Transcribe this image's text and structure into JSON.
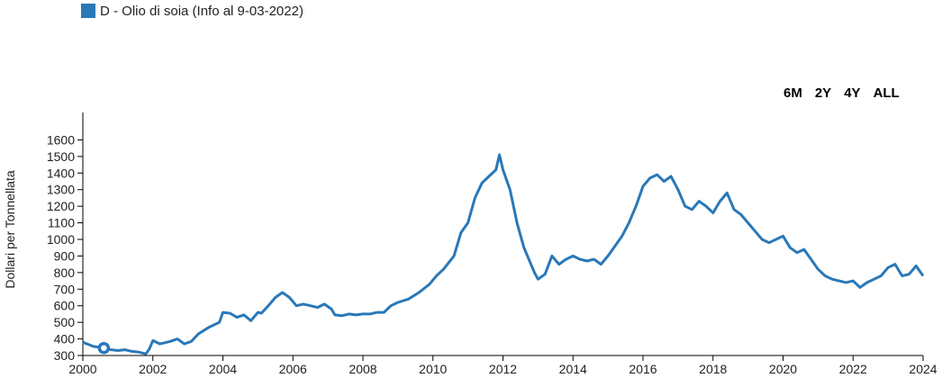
{
  "legend": {
    "label": "D - Olio di soia (Info al 9-03-2022)",
    "color": "#2a78b8"
  },
  "range_buttons": [
    "6M",
    "2Y",
    "4Y",
    "ALL"
  ],
  "chart_data": {
    "type": "line",
    "title": "",
    "xlabel": "",
    "ylabel": "Dollari per Tonnellata",
    "xlim": [
      2000,
      2024
    ],
    "ylim": [
      300,
      1700
    ],
    "x_ticks": [
      "2000",
      "2002",
      "2004",
      "2006",
      "2008",
      "2010",
      "2012",
      "2014",
      "2016",
      "2018",
      "2020",
      "2022",
      "2024"
    ],
    "y_ticks": [
      "300",
      "400",
      "500",
      "600",
      "700",
      "800",
      "900",
      "1000",
      "1100",
      "1200",
      "1300",
      "1400",
      "1500",
      "1600"
    ],
    "grid": false,
    "series": [
      {
        "name": "D - Olio di soia (Info al 9-03-2022)",
        "color": "#2a78b8",
        "points": [
          [
            2000.0,
            380
          ],
          [
            2000.3,
            355
          ],
          [
            2000.6,
            345
          ],
          [
            2000.8,
            335
          ],
          [
            2001.0,
            330
          ],
          [
            2001.2,
            335
          ],
          [
            2001.4,
            325
          ],
          [
            2001.6,
            320
          ],
          [
            2001.8,
            310
          ],
          [
            2001.9,
            340
          ],
          [
            2002.0,
            390
          ],
          [
            2002.2,
            370
          ],
          [
            2002.5,
            385
          ],
          [
            2002.7,
            400
          ],
          [
            2002.9,
            370
          ],
          [
            2003.1,
            385
          ],
          [
            2003.3,
            430
          ],
          [
            2003.6,
            470
          ],
          [
            2003.9,
            500
          ],
          [
            2004.0,
            560
          ],
          [
            2004.2,
            555
          ],
          [
            2004.4,
            530
          ],
          [
            2004.6,
            545
          ],
          [
            2004.8,
            510
          ],
          [
            2005.0,
            560
          ],
          [
            2005.1,
            555
          ],
          [
            2005.3,
            600
          ],
          [
            2005.5,
            650
          ],
          [
            2005.7,
            680
          ],
          [
            2005.9,
            650
          ],
          [
            2006.1,
            600
          ],
          [
            2006.3,
            610
          ],
          [
            2006.5,
            600
          ],
          [
            2006.7,
            590
          ],
          [
            2006.9,
            610
          ],
          [
            2007.1,
            580
          ],
          [
            2007.2,
            545
          ],
          [
            2007.4,
            540
          ],
          [
            2007.6,
            550
          ],
          [
            2007.8,
            545
          ],
          [
            2008.0,
            550
          ],
          [
            2008.2,
            550
          ],
          [
            2008.4,
            560
          ],
          [
            2008.6,
            560
          ],
          [
            2008.8,
            600
          ],
          [
            2009.0,
            620
          ],
          [
            2009.3,
            640
          ],
          [
            2009.6,
            680
          ],
          [
            2009.9,
            730
          ],
          [
            2010.1,
            780
          ],
          [
            2010.3,
            820
          ],
          [
            2010.6,
            900
          ],
          [
            2010.8,
            1040
          ],
          [
            2011.0,
            1100
          ],
          [
            2011.2,
            1250
          ],
          [
            2011.4,
            1340
          ],
          [
            2011.6,
            1380
          ],
          [
            2011.8,
            1420
          ],
          [
            2011.9,
            1510
          ],
          [
            2012.0,
            1420
          ],
          [
            2012.2,
            1300
          ],
          [
            2012.4,
            1100
          ],
          [
            2012.6,
            950
          ],
          [
            2012.9,
            800
          ],
          [
            2013.0,
            760
          ],
          [
            2013.2,
            790
          ],
          [
            2013.4,
            900
          ],
          [
            2013.6,
            850
          ],
          [
            2013.8,
            880
          ],
          [
            2014.0,
            900
          ],
          [
            2014.2,
            880
          ],
          [
            2014.4,
            870
          ],
          [
            2014.6,
            880
          ],
          [
            2014.8,
            850
          ],
          [
            2015.0,
            900
          ],
          [
            2015.2,
            960
          ],
          [
            2015.4,
            1020
          ],
          [
            2015.6,
            1100
          ],
          [
            2015.8,
            1200
          ],
          [
            2016.0,
            1320
          ],
          [
            2016.2,
            1370
          ],
          [
            2016.4,
            1390
          ],
          [
            2016.6,
            1350
          ],
          [
            2016.8,
            1380
          ],
          [
            2017.0,
            1300
          ],
          [
            2017.2,
            1200
          ],
          [
            2017.4,
            1180
          ],
          [
            2017.6,
            1230
          ],
          [
            2017.8,
            1200
          ],
          [
            2018.0,
            1160
          ],
          [
            2018.2,
            1230
          ],
          [
            2018.4,
            1280
          ],
          [
            2018.6,
            1180
          ],
          [
            2018.8,
            1150
          ],
          [
            2019.0,
            1100
          ],
          [
            2019.2,
            1050
          ],
          [
            2019.4,
            1000
          ],
          [
            2019.6,
            980
          ],
          [
            2019.8,
            1000
          ],
          [
            2020.0,
            1020
          ],
          [
            2020.2,
            950
          ],
          [
            2020.4,
            920
          ],
          [
            2020.6,
            940
          ],
          [
            2020.8,
            880
          ],
          [
            2021.0,
            820
          ],
          [
            2021.2,
            780
          ],
          [
            2021.4,
            760
          ],
          [
            2021.6,
            750
          ],
          [
            2021.8,
            740
          ],
          [
            2022.0,
            750
          ],
          [
            2022.2,
            710
          ],
          [
            2022.4,
            740
          ],
          [
            2022.6,
            760
          ],
          [
            2022.8,
            780
          ],
          [
            2023.0,
            830
          ],
          [
            2023.2,
            850
          ],
          [
            2023.4,
            780
          ],
          [
            2023.6,
            790
          ],
          [
            2023.8,
            840
          ],
          [
            2024.0,
            780
          ]
        ]
      }
    ]
  }
}
